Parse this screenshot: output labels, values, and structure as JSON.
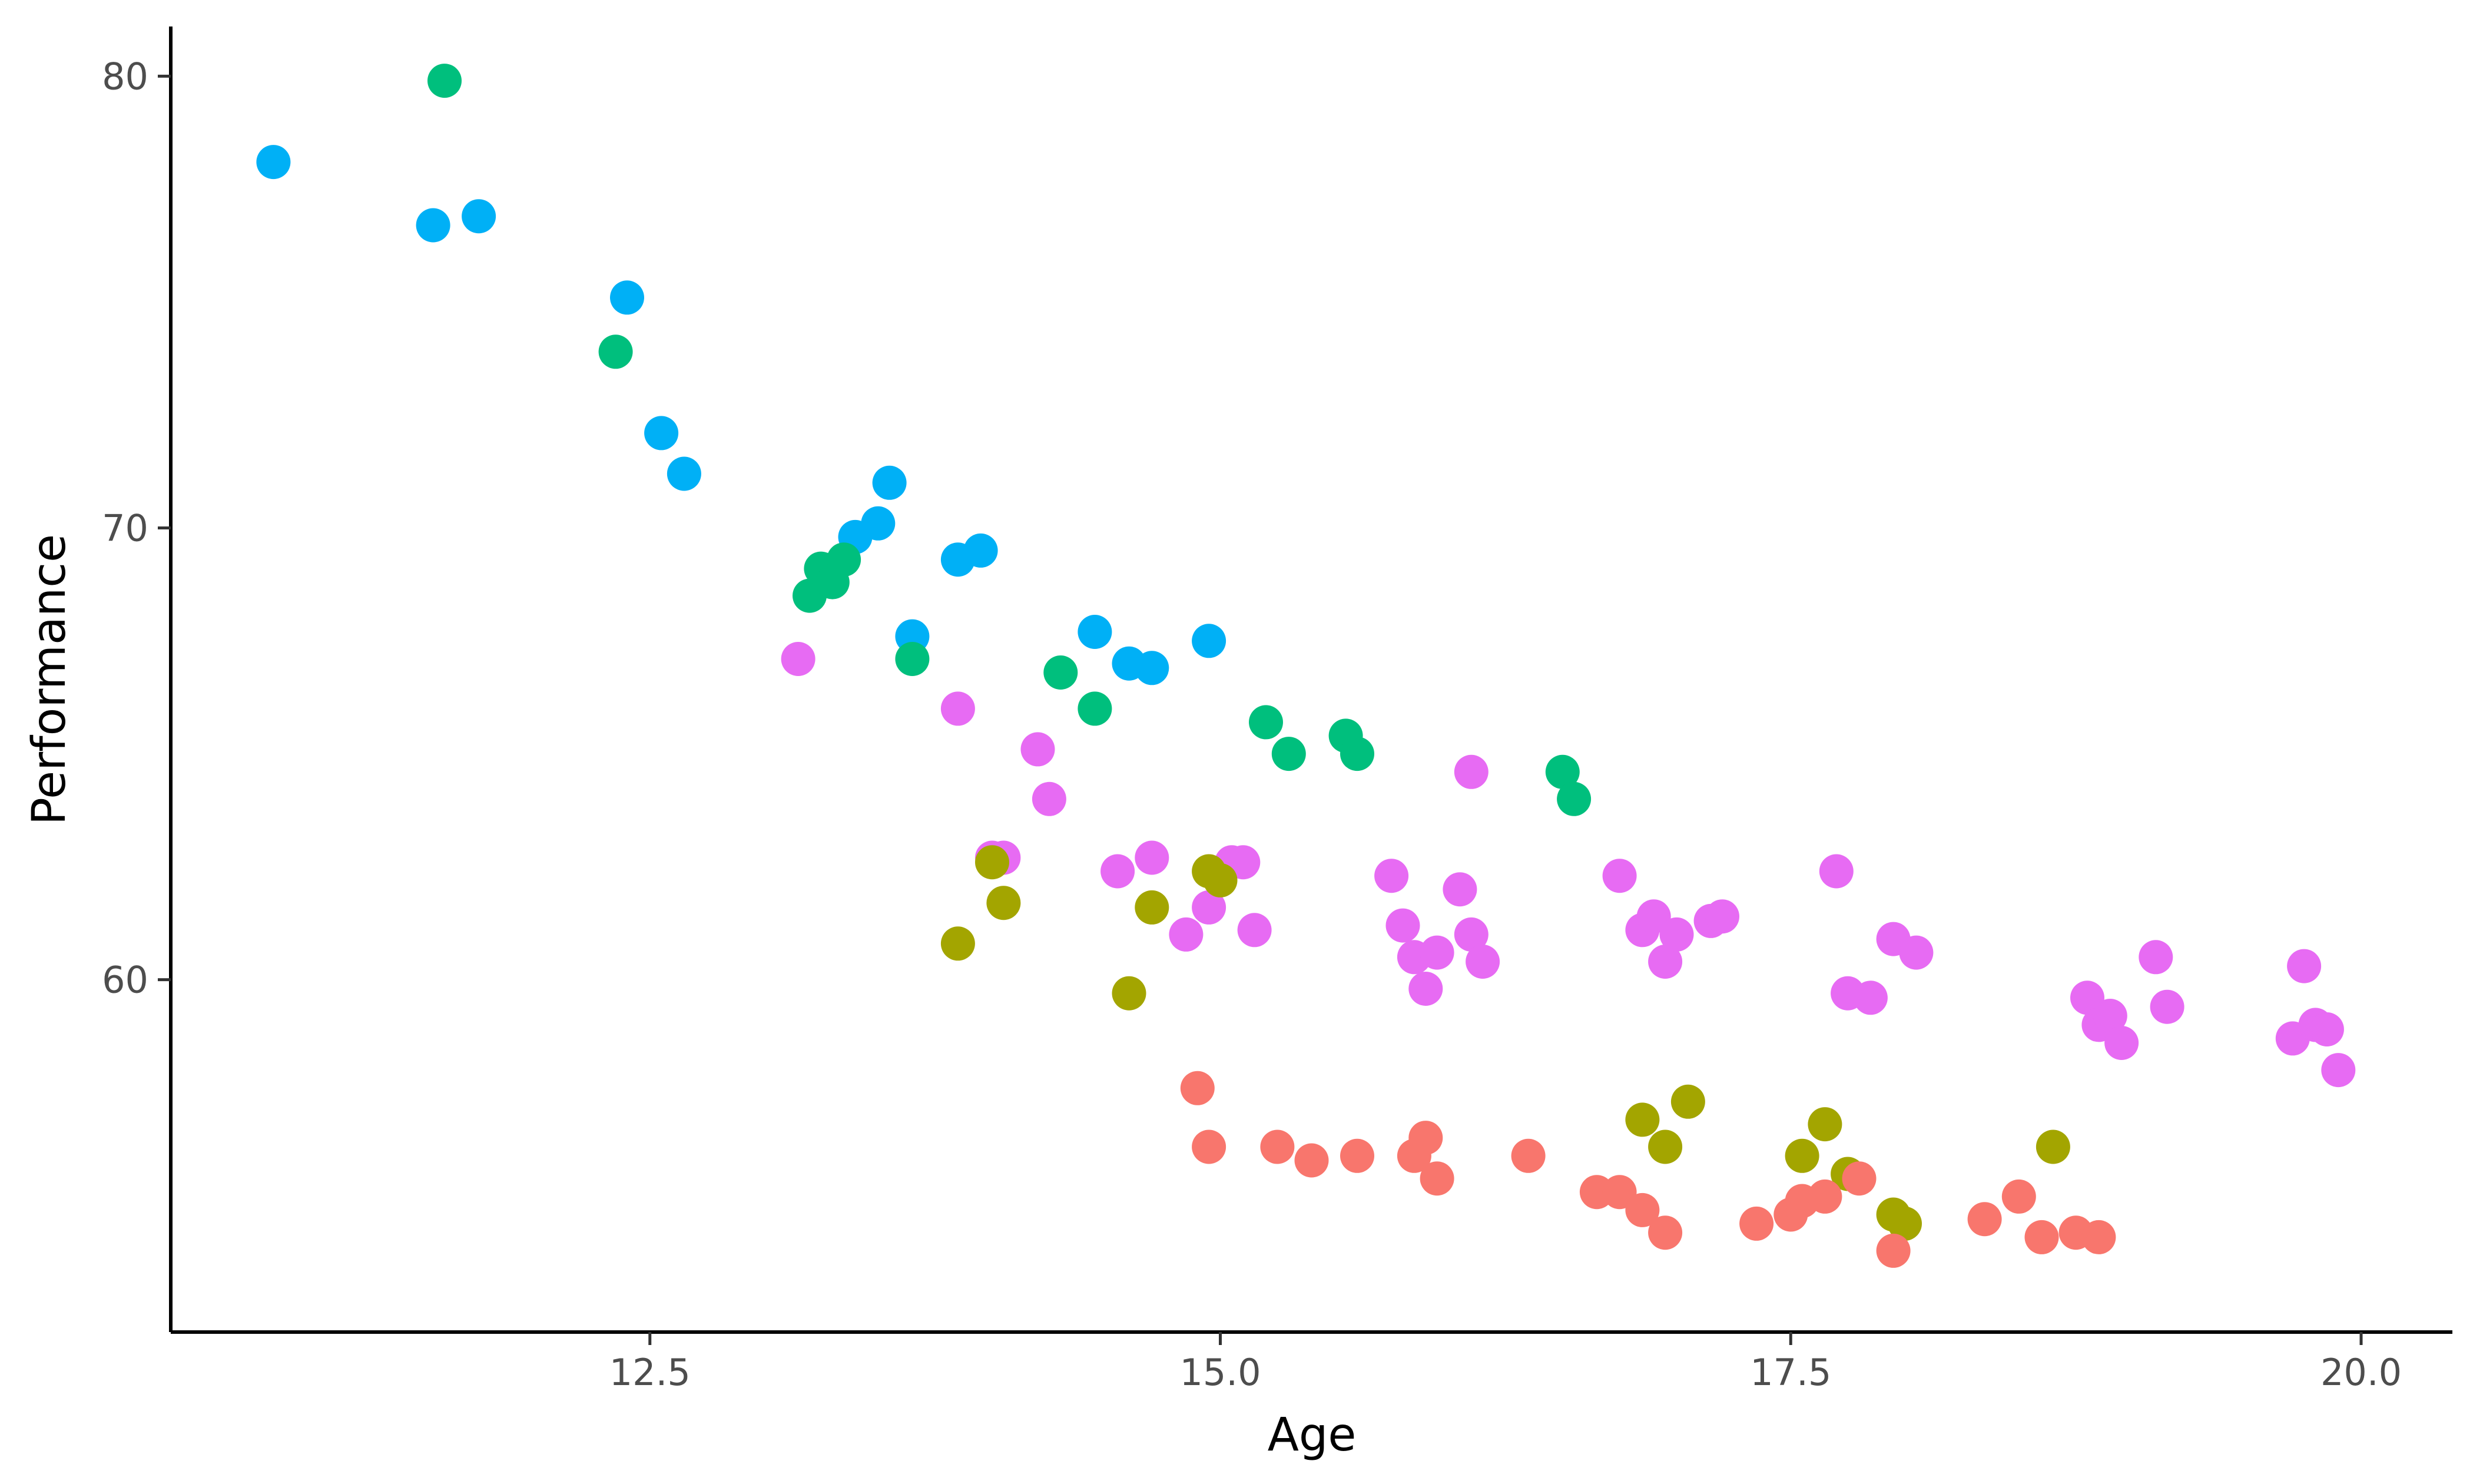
{
  "chart_data": {
    "type": "scatter",
    "title": "",
    "xlabel": "Age",
    "ylabel": "Performance",
    "xlim": [
      10.4,
      20.4
    ],
    "ylim": [
      52.2,
      81.1
    ],
    "x_ticks": [
      12.5,
      15.0,
      17.5,
      20.0
    ],
    "x_tick_labels": [
      "12.5",
      "15.0",
      "17.5",
      "20.0"
    ],
    "y_ticks": [
      60,
      70,
      80
    ],
    "y_tick_labels": [
      "60",
      "70",
      "80"
    ],
    "grid": false,
    "legend": "none",
    "series": [
      {
        "color": "#00B0F6",
        "points": [
          [
            10.85,
            78.1
          ],
          [
            11.55,
            76.7
          ],
          [
            11.75,
            76.9
          ],
          [
            12.4,
            75.1
          ],
          [
            12.55,
            72.1
          ],
          [
            12.65,
            71.2
          ],
          [
            13.4,
            69.8
          ],
          [
            13.5,
            70.1
          ],
          [
            13.55,
            71.0
          ],
          [
            13.65,
            67.6
          ],
          [
            13.85,
            69.3
          ],
          [
            13.95,
            69.5
          ],
          [
            14.45,
            67.7
          ],
          [
            14.6,
            67.0
          ],
          [
            14.7,
            66.9
          ],
          [
            14.95,
            67.5
          ]
        ]
      },
      {
        "color": "#00BF7D",
        "points": [
          [
            11.6,
            79.9
          ],
          [
            12.35,
            73.9
          ],
          [
            13.2,
            68.5
          ],
          [
            13.25,
            69.1
          ],
          [
            13.3,
            68.8
          ],
          [
            13.35,
            69.3
          ],
          [
            13.65,
            67.1
          ],
          [
            14.3,
            66.8
          ],
          [
            14.45,
            66.0
          ],
          [
            15.2,
            65.7
          ],
          [
            15.3,
            65.0
          ],
          [
            15.55,
            65.4
          ],
          [
            15.6,
            65.0
          ],
          [
            16.5,
            64.6
          ],
          [
            16.55,
            64.0
          ]
        ]
      },
      {
        "color": "#E76BF3",
        "points": [
          [
            13.15,
            67.1
          ],
          [
            13.85,
            66.0
          ],
          [
            14.0,
            62.7
          ],
          [
            14.05,
            62.7
          ],
          [
            14.2,
            65.1
          ],
          [
            14.25,
            64.0
          ],
          [
            14.55,
            62.4
          ],
          [
            14.7,
            62.7
          ],
          [
            14.85,
            61.0
          ],
          [
            14.95,
            61.6
          ],
          [
            15.05,
            62.6
          ],
          [
            15.1,
            62.6
          ],
          [
            15.15,
            61.1
          ],
          [
            15.75,
            62.3
          ],
          [
            15.8,
            61.2
          ],
          [
            15.85,
            60.5
          ],
          [
            15.9,
            59.8
          ],
          [
            15.95,
            60.6
          ],
          [
            16.05,
            62.0
          ],
          [
            16.1,
            64.6
          ],
          [
            16.1,
            61.0
          ],
          [
            16.15,
            60.4
          ],
          [
            16.75,
            62.3
          ],
          [
            16.85,
            61.1
          ],
          [
            16.9,
            61.4
          ],
          [
            16.95,
            60.4
          ],
          [
            17.0,
            61.0
          ],
          [
            17.15,
            61.3
          ],
          [
            17.2,
            61.4
          ],
          [
            17.7,
            62.4
          ],
          [
            17.75,
            59.7
          ],
          [
            17.85,
            59.6
          ],
          [
            17.95,
            60.9
          ],
          [
            18.05,
            60.6
          ],
          [
            18.8,
            59.6
          ],
          [
            18.85,
            59.0
          ],
          [
            18.9,
            59.2
          ],
          [
            18.95,
            58.6
          ],
          [
            19.1,
            60.5
          ],
          [
            19.15,
            59.4
          ],
          [
            19.7,
            58.7
          ],
          [
            19.75,
            60.3
          ],
          [
            19.8,
            59.0
          ],
          [
            19.85,
            58.9
          ],
          [
            19.9,
            58.0
          ]
        ]
      },
      {
        "color": "#A3A500",
        "points": [
          [
            13.85,
            60.8
          ],
          [
            14.0,
            62.6
          ],
          [
            14.05,
            61.7
          ],
          [
            14.6,
            59.7
          ],
          [
            14.7,
            61.6
          ],
          [
            14.95,
            62.4
          ],
          [
            15.0,
            62.2
          ],
          [
            16.85,
            56.9
          ],
          [
            16.95,
            56.3
          ],
          [
            17.05,
            57.3
          ],
          [
            17.55,
            56.1
          ],
          [
            17.65,
            56.8
          ],
          [
            17.75,
            55.7
          ],
          [
            17.95,
            54.8
          ],
          [
            18.0,
            54.6
          ],
          [
            18.65,
            56.3
          ]
        ]
      },
      {
        "color": "#F8766D",
        "points": [
          [
            14.9,
            57.6
          ],
          [
            14.95,
            56.3
          ],
          [
            15.25,
            56.3
          ],
          [
            15.4,
            56.0
          ],
          [
            15.6,
            56.1
          ],
          [
            15.85,
            56.1
          ],
          [
            15.9,
            56.5
          ],
          [
            15.95,
            55.6
          ],
          [
            16.35,
            56.1
          ],
          [
            16.65,
            55.3
          ],
          [
            16.75,
            55.3
          ],
          [
            16.85,
            54.9
          ],
          [
            16.95,
            54.4
          ],
          [
            17.35,
            54.6
          ],
          [
            17.5,
            54.8
          ],
          [
            17.55,
            55.1
          ],
          [
            17.65,
            55.2
          ],
          [
            17.8,
            55.6
          ],
          [
            17.95,
            54.0
          ],
          [
            18.35,
            54.7
          ],
          [
            18.5,
            55.2
          ],
          [
            18.6,
            54.3
          ],
          [
            18.75,
            54.4
          ],
          [
            18.85,
            54.3
          ]
        ]
      }
    ]
  }
}
